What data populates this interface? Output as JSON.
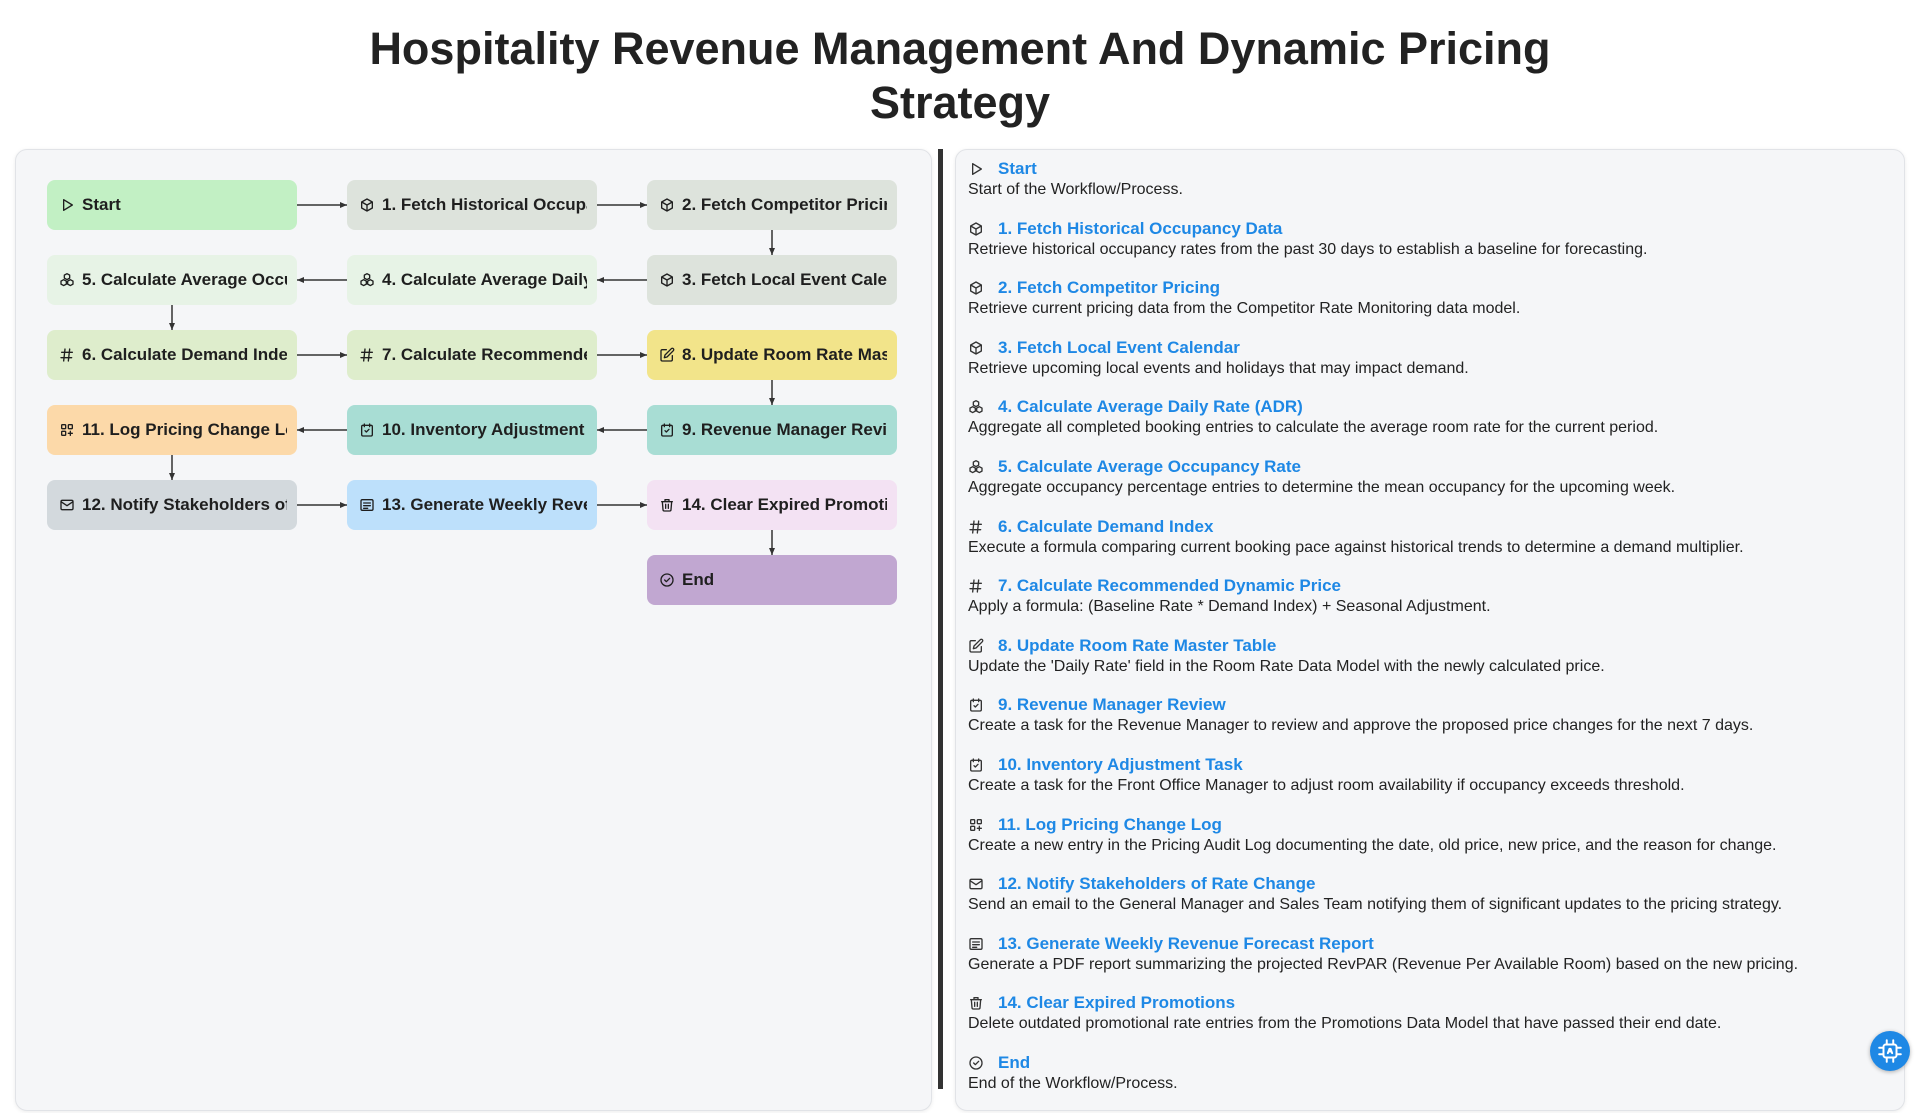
{
  "page": {
    "title": "Hospitality Revenue Management And Dynamic Pricing Strategy"
  },
  "nodes": [
    {
      "id": "start",
      "label": "Start",
      "icon": "play-icon",
      "color": "#c2f0c4"
    },
    {
      "id": "n1",
      "label": "1. Fetch Historical Occupancy Data",
      "icon": "cube-icon",
      "color": "#dde3dc"
    },
    {
      "id": "n2",
      "label": "2. Fetch Competitor Pricing",
      "icon": "cube-icon",
      "color": "#dde3dc"
    },
    {
      "id": "n3",
      "label": "3. Fetch Local Event Calendar",
      "icon": "cube-icon",
      "color": "#dde3dc"
    },
    {
      "id": "n4",
      "label": "4. Calculate Average Daily Rate (ADR)",
      "icon": "cubes-icon",
      "color": "#e7f3e6"
    },
    {
      "id": "n5",
      "label": "5. Calculate Average Occupancy Rate",
      "icon": "cubes-icon",
      "color": "#e7f3e6"
    },
    {
      "id": "n6",
      "label": "6. Calculate Demand Index",
      "icon": "formula-icon",
      "color": "#deedcc"
    },
    {
      "id": "n7",
      "label": "7. Calculate Recommended Dynamic Price",
      "icon": "formula-icon",
      "color": "#deedcc"
    },
    {
      "id": "n8",
      "label": "8. Update Room Rate Master Table",
      "icon": "edit-icon",
      "color": "#f2e48a"
    },
    {
      "id": "n9",
      "label": "9. Revenue Manager Review",
      "icon": "task-icon",
      "color": "#a8ddd4"
    },
    {
      "id": "n10",
      "label": "10. Inventory Adjustment Task",
      "icon": "task-icon",
      "color": "#a8ddd4"
    },
    {
      "id": "n11",
      "label": "11. Log Pricing Change Log",
      "icon": "grid-plus-icon",
      "color": "#fcd9a9"
    },
    {
      "id": "n12",
      "label": "12. Notify Stakeholders of Rate Change",
      "icon": "mail-icon",
      "color": "#d3d9dd"
    },
    {
      "id": "n13",
      "label": "13. Generate Weekly Revenue Forecast Report",
      "icon": "report-icon",
      "color": "#bde0fb"
    },
    {
      "id": "n14",
      "label": "14. Clear Expired Promotions",
      "icon": "trash-icon",
      "color": "#f3e2f3"
    },
    {
      "id": "end",
      "label": "End",
      "icon": "check-circle-icon",
      "color": "#c1a7d1"
    }
  ],
  "steps": [
    {
      "title": "Start",
      "icon": "play-icon",
      "desc": "Start of the Workflow/Process."
    },
    {
      "title": "1. Fetch Historical Occupancy Data",
      "icon": "cube-icon",
      "desc": "Retrieve historical occupancy rates from the past 30 days to establish a baseline for forecasting."
    },
    {
      "title": "2. Fetch Competitor Pricing",
      "icon": "cube-icon",
      "desc": "Retrieve current pricing data from the Competitor Rate Monitoring data model."
    },
    {
      "title": "3. Fetch Local Event Calendar",
      "icon": "cube-icon",
      "desc": "Retrieve upcoming local events and holidays that may impact demand."
    },
    {
      "title": "4. Calculate Average Daily Rate (ADR)",
      "icon": "cubes-icon",
      "desc": "Aggregate all completed booking entries to calculate the average room rate for the current period."
    },
    {
      "title": "5. Calculate Average Occupancy Rate",
      "icon": "cubes-icon",
      "desc": "Aggregate occupancy percentage entries to determine the mean occupancy for the upcoming week."
    },
    {
      "title": "6. Calculate Demand Index",
      "icon": "formula-icon",
      "desc": "Execute a formula comparing current booking pace against historical trends to determine a demand multiplier."
    },
    {
      "title": "7. Calculate Recommended Dynamic Price",
      "icon": "formula-icon",
      "desc": "Apply a formula: (Baseline Rate * Demand Index) + Seasonal Adjustment."
    },
    {
      "title": "8. Update Room Rate Master Table",
      "icon": "edit-icon",
      "desc": "Update the 'Daily Rate' field in the Room Rate Data Model with the newly calculated price."
    },
    {
      "title": "9. Revenue Manager Review",
      "icon": "task-icon",
      "desc": "Create a task for the Revenue Manager to review and approve the proposed price changes for the next 7 days."
    },
    {
      "title": "10. Inventory Adjustment Task",
      "icon": "task-icon",
      "desc": "Create a task for the Front Office Manager to adjust room availability if occupancy exceeds threshold."
    },
    {
      "title": "11. Log Pricing Change Log",
      "icon": "grid-plus-icon",
      "desc": "Create a new entry in the Pricing Audit Log documenting the date, old price, new price, and the reason for change."
    },
    {
      "title": "12. Notify Stakeholders of Rate Change",
      "icon": "mail-icon",
      "desc": "Send an email to the General Manager and Sales Team notifying them of significant updates to the pricing strategy."
    },
    {
      "title": "13. Generate Weekly Revenue Forecast Report",
      "icon": "report-icon",
      "desc": "Generate a PDF report summarizing the projected RevPAR (Revenue Per Available Room) based on the new pricing."
    },
    {
      "title": "14. Clear Expired Promotions",
      "icon": "trash-icon",
      "desc": "Delete outdated promotional rate entries from the Promotions Data Model that have passed their end date."
    },
    {
      "title": "End",
      "icon": "check-circle-icon",
      "desc": "End of the Workflow/Process."
    }
  ],
  "fab": {
    "icon": "chip-icon",
    "color": "#1e88e5"
  }
}
